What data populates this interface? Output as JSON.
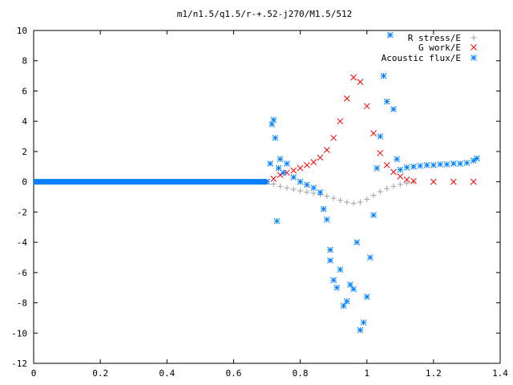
{
  "chart_data": {
    "type": "scatter",
    "title": "m1/n1.5/q1.5/r-+.52-j270/M1.5/512",
    "xlabel": "",
    "ylabel": "",
    "xlim": [
      0,
      1.4
    ],
    "ylim": [
      -12,
      10
    ],
    "x_ticks": [
      "0",
      "0.2",
      "0.4",
      "0.6",
      "0.8",
      "1",
      "1.2",
      "1.4"
    ],
    "y_ticks": [
      "-12",
      "-10",
      "-8",
      "-6",
      "-4",
      "-2",
      "0",
      "2",
      "4",
      "6",
      "8",
      "10"
    ],
    "grid": false,
    "legend_position": "top-right",
    "series": [
      {
        "name": "R stress/E",
        "marker": "plus",
        "color": "#a0a0a0",
        "points": [
          [
            0.7,
            0.0
          ],
          [
            0.72,
            -0.15
          ],
          [
            0.74,
            -0.3
          ],
          [
            0.76,
            -0.4
          ],
          [
            0.78,
            -0.5
          ],
          [
            0.8,
            -0.6
          ],
          [
            0.82,
            -0.68
          ],
          [
            0.84,
            -0.76
          ],
          [
            0.86,
            -0.85
          ],
          [
            0.88,
            -0.95
          ],
          [
            0.9,
            -1.08
          ],
          [
            0.92,
            -1.22
          ],
          [
            0.94,
            -1.35
          ],
          [
            0.96,
            -1.42
          ],
          [
            0.98,
            -1.35
          ],
          [
            1.0,
            -1.15
          ],
          [
            1.02,
            -0.9
          ],
          [
            1.04,
            -0.65
          ],
          [
            1.06,
            -0.45
          ],
          [
            1.08,
            -0.3
          ],
          [
            1.1,
            -0.18
          ],
          [
            1.12,
            -0.08
          ],
          [
            1.14,
            0.0
          ]
        ]
      },
      {
        "name": "G work/E",
        "marker": "cross",
        "color": "#ff0000",
        "points": [
          [
            0.7,
            0.0
          ],
          [
            0.72,
            0.2
          ],
          [
            0.74,
            0.45
          ],
          [
            0.76,
            0.6
          ],
          [
            0.78,
            0.75
          ],
          [
            0.8,
            0.9
          ],
          [
            0.82,
            1.1
          ],
          [
            0.84,
            1.3
          ],
          [
            0.86,
            1.6
          ],
          [
            0.88,
            2.1
          ],
          [
            0.9,
            2.9
          ],
          [
            0.92,
            4.0
          ],
          [
            0.94,
            5.5
          ],
          [
            0.96,
            6.9
          ],
          [
            0.98,
            6.6
          ],
          [
            1.0,
            5.0
          ],
          [
            1.02,
            3.2
          ],
          [
            1.04,
            1.9
          ],
          [
            1.06,
            1.1
          ],
          [
            1.08,
            0.65
          ],
          [
            1.1,
            0.35
          ],
          [
            1.12,
            0.15
          ],
          [
            1.14,
            0.05
          ],
          [
            1.2,
            0.0
          ],
          [
            1.26,
            0.0
          ],
          [
            1.32,
            0.0
          ]
        ]
      },
      {
        "name": "Acoustic flux/E",
        "marker": "star",
        "color": "#0080ff",
        "points": [
          [
            0.7,
            0.0
          ],
          [
            0.71,
            1.2
          ],
          [
            0.715,
            3.8
          ],
          [
            0.72,
            4.1
          ],
          [
            0.725,
            2.9
          ],
          [
            0.73,
            -2.6
          ],
          [
            0.735,
            0.9
          ],
          [
            0.74,
            1.5
          ],
          [
            0.75,
            0.6
          ],
          [
            0.76,
            1.2
          ],
          [
            0.78,
            0.3
          ],
          [
            0.8,
            0.0
          ],
          [
            0.82,
            -0.2
          ],
          [
            0.84,
            -0.4
          ],
          [
            0.86,
            -0.7
          ],
          [
            0.87,
            -1.8
          ],
          [
            0.88,
            -2.5
          ],
          [
            0.89,
            -5.2
          ],
          [
            0.89,
            -4.5
          ],
          [
            0.9,
            -6.5
          ],
          [
            0.91,
            -7.0
          ],
          [
            0.92,
            -5.8
          ],
          [
            0.93,
            -8.2
          ],
          [
            0.94,
            -7.9
          ],
          [
            0.95,
            -6.8
          ],
          [
            0.96,
            -7.1
          ],
          [
            0.97,
            -4.0
          ],
          [
            0.98,
            -9.8
          ],
          [
            0.99,
            -9.3
          ],
          [
            1.0,
            -7.6
          ],
          [
            1.01,
            -5.0
          ],
          [
            1.02,
            -2.2
          ],
          [
            1.03,
            0.9
          ],
          [
            1.04,
            3.0
          ],
          [
            1.05,
            7.0
          ],
          [
            1.06,
            5.3
          ],
          [
            1.07,
            9.7
          ],
          [
            1.08,
            4.8
          ],
          [
            1.09,
            1.5
          ],
          [
            1.1,
            0.8
          ],
          [
            1.12,
            0.95
          ],
          [
            1.14,
            1.0
          ],
          [
            1.16,
            1.05
          ],
          [
            1.18,
            1.1
          ],
          [
            1.2,
            1.1
          ],
          [
            1.22,
            1.15
          ],
          [
            1.24,
            1.15
          ],
          [
            1.26,
            1.2
          ],
          [
            1.28,
            1.2
          ],
          [
            1.3,
            1.25
          ],
          [
            1.32,
            1.4
          ],
          [
            1.33,
            1.55
          ]
        ]
      }
    ],
    "baseline": {
      "series_index": 2,
      "x_start": 0.0,
      "x_end": 0.7,
      "value": 0.0
    }
  }
}
